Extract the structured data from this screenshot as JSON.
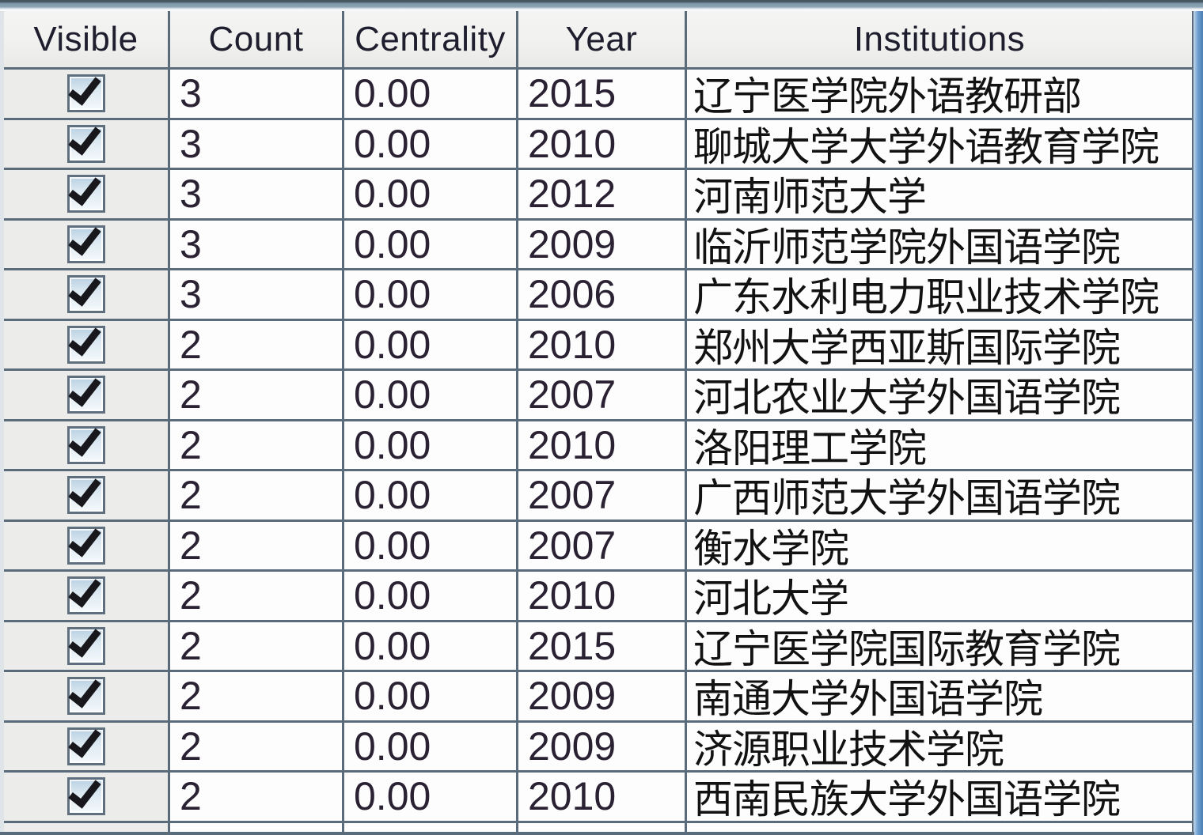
{
  "table": {
    "columns": [
      {
        "key": "visible",
        "label": "Visible"
      },
      {
        "key": "count",
        "label": "Count"
      },
      {
        "key": "centrality",
        "label": "Centrality"
      },
      {
        "key": "year",
        "label": "Year"
      },
      {
        "key": "institution",
        "label": "Institutions"
      }
    ],
    "rows": [
      {
        "visible": true,
        "count": "3",
        "centrality": "0.00",
        "year": "2015",
        "institution": "辽宁医学院外语教研部"
      },
      {
        "visible": true,
        "count": "3",
        "centrality": "0.00",
        "year": "2010",
        "institution": "聊城大学大学外语教育学院"
      },
      {
        "visible": true,
        "count": "3",
        "centrality": "0.00",
        "year": "2012",
        "institution": "河南师范大学"
      },
      {
        "visible": true,
        "count": "3",
        "centrality": "0.00",
        "year": "2009",
        "institution": "临沂师范学院外国语学院"
      },
      {
        "visible": true,
        "count": "3",
        "centrality": "0.00",
        "year": "2006",
        "institution": "广东水利电力职业技术学院"
      },
      {
        "visible": true,
        "count": "2",
        "centrality": "0.00",
        "year": "2010",
        "institution": "郑州大学西亚斯国际学院"
      },
      {
        "visible": true,
        "count": "2",
        "centrality": "0.00",
        "year": "2007",
        "institution": "河北农业大学外国语学院"
      },
      {
        "visible": true,
        "count": "2",
        "centrality": "0.00",
        "year": "2010",
        "institution": "洛阳理工学院"
      },
      {
        "visible": true,
        "count": "2",
        "centrality": "0.00",
        "year": "2007",
        "institution": "广西师范大学外国语学院"
      },
      {
        "visible": true,
        "count": "2",
        "centrality": "0.00",
        "year": "2007",
        "institution": "衡水学院"
      },
      {
        "visible": true,
        "count": "2",
        "centrality": "0.00",
        "year": "2010",
        "institution": "河北大学"
      },
      {
        "visible": true,
        "count": "2",
        "centrality": "0.00",
        "year": "2015",
        "institution": "辽宁医学院国际教育学院"
      },
      {
        "visible": true,
        "count": "2",
        "centrality": "0.00",
        "year": "2009",
        "institution": "南通大学外国语学院"
      },
      {
        "visible": true,
        "count": "2",
        "centrality": "0.00",
        "year": "2009",
        "institution": "济源职业技术学院"
      },
      {
        "visible": true,
        "count": "2",
        "centrality": "0.00",
        "year": "2010",
        "institution": "西南民族大学外国语学院"
      }
    ]
  },
  "icons": {
    "visible_check": "check-mark"
  },
  "colors": {
    "top_bar": "#7e97aa",
    "grid_line": "#5a6b7c",
    "header_bg": "#f1f1ef",
    "cell_bg": "#fdfdfe",
    "visible_column_bg": "#ececea",
    "header_text": "#1e1e2e",
    "number_text": "#2a2133",
    "institution_text": "#121212",
    "scrollbar_blue": "#6fa0d2",
    "checkbox_border": "#5f6f7d"
  }
}
